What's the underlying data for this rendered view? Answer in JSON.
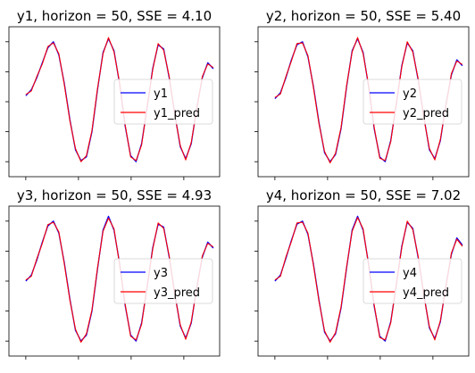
{
  "chart_data": [
    {
      "type": "line",
      "title": "y1, horizon = 50, SSE = 4.10",
      "xlabel": "",
      "ylabel": "",
      "grid": false,
      "legend_placement": "center-right",
      "series": [
        {
          "name": "y1",
          "color": "#0000ff",
          "values": [
            0.1,
            0.2,
            0.4,
            0.65,
            0.9,
            1.0,
            0.78,
            0.3,
            -0.3,
            -0.8,
            -0.98,
            -0.92,
            -0.5,
            0.2,
            0.82,
            1.05,
            0.85,
            0.3,
            -0.4,
            -0.9,
            -1.0,
            -0.7,
            -0.1,
            0.55,
            0.95,
            0.88,
            0.4,
            -0.2,
            -0.75,
            -0.95,
            -0.7,
            -0.1,
            0.4,
            0.65,
            0.55
          ]
        },
        {
          "name": "y1_pred",
          "color": "#ff0000",
          "values": [
            0.12,
            0.18,
            0.42,
            0.63,
            0.92,
            0.98,
            0.8,
            0.28,
            -0.32,
            -0.78,
            -1.0,
            -0.9,
            -0.48,
            0.22,
            0.8,
            1.07,
            0.83,
            0.32,
            -0.38,
            -0.92,
            -0.98,
            -0.72,
            -0.08,
            0.53,
            0.97,
            0.86,
            0.42,
            -0.22,
            -0.73,
            -0.97,
            -0.68,
            -0.12,
            0.42,
            0.63,
            0.57
          ]
        }
      ]
    },
    {
      "type": "line",
      "title": "y2, horizon = 50, SSE = 5.40",
      "xlabel": "",
      "ylabel": "",
      "grid": false,
      "legend_placement": "center-right",
      "series": [
        {
          "name": "y2",
          "color": "#0000ff",
          "values": [
            0.05,
            0.15,
            0.4,
            0.7,
            0.95,
            1.0,
            0.75,
            0.25,
            -0.35,
            -0.85,
            -1.0,
            -0.88,
            -0.45,
            0.25,
            0.85,
            1.05,
            0.82,
            0.25,
            -0.45,
            -0.92,
            -1.0,
            -0.65,
            -0.05,
            0.6,
            0.98,
            0.85,
            0.35,
            -0.25,
            -0.8,
            -0.95,
            -0.65,
            -0.05,
            0.45,
            0.7,
            0.6
          ]
        },
        {
          "name": "y2_pred",
          "color": "#ff0000",
          "values": [
            0.07,
            0.13,
            0.42,
            0.68,
            0.97,
            0.98,
            0.77,
            0.23,
            -0.37,
            -0.83,
            -1.02,
            -0.86,
            -0.43,
            0.27,
            0.83,
            1.07,
            0.8,
            0.27,
            -0.43,
            -0.94,
            -0.98,
            -0.67,
            -0.03,
            0.58,
            1.0,
            0.83,
            0.37,
            -0.27,
            -0.78,
            -0.97,
            -0.63,
            -0.07,
            0.47,
            0.68,
            0.62
          ]
        }
      ]
    },
    {
      "type": "line",
      "title": "y3, horizon = 50, SSE = 4.93",
      "xlabel": "",
      "ylabel": "",
      "grid": false,
      "legend_placement": "center-right",
      "series": [
        {
          "name": "y3",
          "color": "#0000ff",
          "values": [
            0.0,
            0.1,
            0.35,
            0.65,
            0.92,
            1.0,
            0.8,
            0.3,
            -0.3,
            -0.82,
            -1.0,
            -0.9,
            -0.5,
            0.2,
            0.85,
            1.08,
            0.85,
            0.3,
            -0.4,
            -0.9,
            -1.0,
            -0.7,
            -0.1,
            0.55,
            0.95,
            0.9,
            0.4,
            -0.2,
            -0.75,
            -0.95,
            -0.7,
            -0.1,
            0.4,
            0.65,
            0.55
          ]
        },
        {
          "name": "y3_pred",
          "color": "#ff0000",
          "values": [
            0.02,
            0.08,
            0.37,
            0.63,
            0.94,
            0.98,
            0.82,
            0.28,
            -0.32,
            -0.8,
            -1.02,
            -0.88,
            -0.48,
            0.22,
            0.83,
            1.05,
            0.87,
            0.28,
            -0.38,
            -0.92,
            -0.98,
            -0.72,
            -0.08,
            0.53,
            0.97,
            0.88,
            0.42,
            -0.22,
            -0.73,
            -0.97,
            -0.68,
            -0.12,
            0.42,
            0.63,
            0.57
          ]
        }
      ]
    },
    {
      "type": "line",
      "title": "y4, horizon = 50, SSE = 7.02",
      "xlabel": "",
      "ylabel": "",
      "grid": false,
      "legend_placement": "center-right",
      "series": [
        {
          "name": "y4",
          "color": "#0000ff",
          "values": [
            0.0,
            0.1,
            0.38,
            0.68,
            0.95,
            1.0,
            0.78,
            0.28,
            -0.32,
            -0.85,
            -1.0,
            -0.88,
            -0.45,
            0.22,
            0.85,
            1.08,
            0.85,
            0.28,
            -0.42,
            -0.92,
            -1.0,
            -0.68,
            -0.08,
            0.58,
            0.98,
            0.88,
            0.38,
            -0.22,
            -0.78,
            -0.96,
            -0.68,
            -0.08,
            0.45,
            0.72,
            0.6
          ]
        },
        {
          "name": "y4_pred",
          "color": "#ff0000",
          "values": [
            0.02,
            0.08,
            0.4,
            0.66,
            0.97,
            0.98,
            0.8,
            0.26,
            -0.34,
            -0.83,
            -1.02,
            -0.86,
            -0.43,
            0.24,
            0.83,
            1.06,
            0.87,
            0.26,
            -0.4,
            -0.94,
            -0.98,
            -0.7,
            -0.06,
            0.56,
            1.0,
            0.86,
            0.4,
            -0.24,
            -0.76,
            -0.98,
            -0.66,
            -0.1,
            0.47,
            0.7,
            0.58
          ]
        }
      ]
    }
  ]
}
